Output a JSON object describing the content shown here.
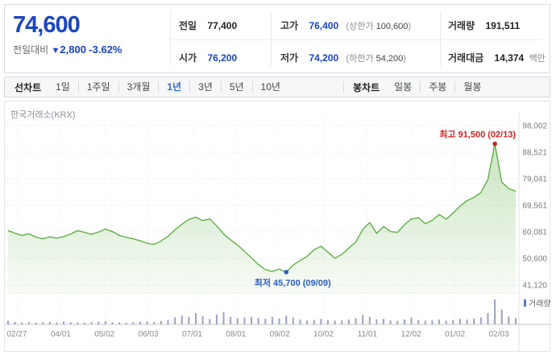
{
  "header": {
    "price": "74,600",
    "change_label": "전일대비",
    "change_arrow": "▼",
    "change_value": "2,800",
    "change_percent": "-3.62%",
    "stats": {
      "prev_label": "전일",
      "prev_value": "77,400",
      "open_label": "시가",
      "open_value": "76,200",
      "high_label": "고가",
      "high_value": "76,400",
      "upper_limit_label": "상한가",
      "upper_limit_value": "100,600",
      "low_label": "저가",
      "low_value": "74,200",
      "lower_limit_label": "하한가",
      "lower_limit_value": "54,200",
      "volume_label": "거래량",
      "volume_value": "191,511",
      "trade_value_label": "거래대금",
      "trade_value_value": "14,374",
      "trade_value_unit": "백만"
    }
  },
  "toolbar": {
    "line_chart_label": "선차트",
    "line_tabs": [
      "1일",
      "1주일",
      "3개월",
      "1년",
      "3년",
      "5년",
      "10년"
    ],
    "selected_line_tab": "1년",
    "candle_chart_label": "봉차트",
    "candle_tabs": [
      "일봉",
      "주봉",
      "월봉"
    ]
  },
  "colors": {
    "down_blue": "#1b46c2",
    "annotation_red": "#d62020",
    "annotation_blue": "#2a5cc8",
    "tab_selected_blue": "#2f6ad0",
    "line_green": "#57ab3c",
    "volume_bar": "#9aa3c4"
  },
  "chart_data": {
    "type": "line",
    "source_label": "한국거래소(KRX)",
    "title": "",
    "ylim": [
      41120,
      98002
    ],
    "y_ticks": [
      "98,002",
      "88,521",
      "79,041",
      "69,561",
      "60,081",
      "50,600",
      "41,120"
    ],
    "y_tick_values": [
      98002,
      88521,
      79041,
      69561,
      60081,
      50600,
      41120
    ],
    "x_ticks": [
      "02/27",
      "04/01",
      "05/02",
      "06/03",
      "07/01",
      "08/01",
      "09/02",
      "10/02",
      "11/01",
      "12/02",
      "01/02",
      "02/03"
    ],
    "grid": true,
    "legend_position": "volume-pane-right",
    "prices": [
      60500,
      59600,
      58800,
      59400,
      58200,
      57600,
      58300,
      57800,
      58400,
      59300,
      60500,
      59900,
      59200,
      60000,
      61100,
      60200,
      58800,
      58100,
      57600,
      56900,
      56000,
      55600,
      56800,
      58500,
      60800,
      62800,
      64500,
      65300,
      64100,
      64700,
      62200,
      59300,
      57200,
      55400,
      53100,
      50800,
      48400,
      46600,
      45900,
      46800,
      45700,
      48200,
      49900,
      51300,
      53700,
      54900,
      52800,
      50700,
      52000,
      54300,
      56400,
      60900,
      63400,
      59500,
      62000,
      60200,
      59900,
      62600,
      64700,
      65100,
      63000,
      64200,
      66300,
      64600,
      66800,
      69300,
      71200,
      72400,
      74100,
      78800,
      91500,
      77800,
      75500,
      74600
    ],
    "volumes": [
      0.15,
      0.1,
      0.08,
      0.09,
      0.07,
      0.08,
      0.1,
      0.08,
      0.12,
      0.09,
      0.08,
      0.07,
      0.09,
      0.11,
      0.13,
      0.09,
      0.08,
      0.07,
      0.08,
      0.1,
      0.12,
      0.1,
      0.14,
      0.18,
      0.28,
      0.35,
      0.3,
      0.45,
      0.32,
      0.22,
      0.4,
      0.5,
      0.3,
      0.25,
      0.28,
      0.3,
      0.26,
      0.22,
      0.3,
      0.24,
      0.35,
      0.28,
      0.2,
      0.16,
      0.18,
      0.22,
      0.17,
      0.15,
      0.16,
      0.2,
      0.25,
      0.38,
      0.3,
      0.2,
      0.22,
      0.16,
      0.14,
      0.2,
      0.28,
      0.18,
      0.15,
      0.16,
      0.2,
      0.15,
      0.18,
      0.22,
      0.2,
      0.24,
      0.28,
      0.45,
      1.0,
      0.6,
      0.32,
      0.25
    ],
    "annotations": {
      "max": {
        "label": "최고",
        "value": "91,500",
        "date": "(02/13)",
        "price": 91500,
        "index": 70,
        "color": "#d62020"
      },
      "min": {
        "label": "최저",
        "value": "45,700",
        "date": "(09/09)",
        "price": 45700,
        "index": 40,
        "color": "#2a5cc8"
      }
    },
    "volume_legend": "거래량",
    "line_color": "#57ab3c",
    "volume_color": "#9aa3c4"
  }
}
